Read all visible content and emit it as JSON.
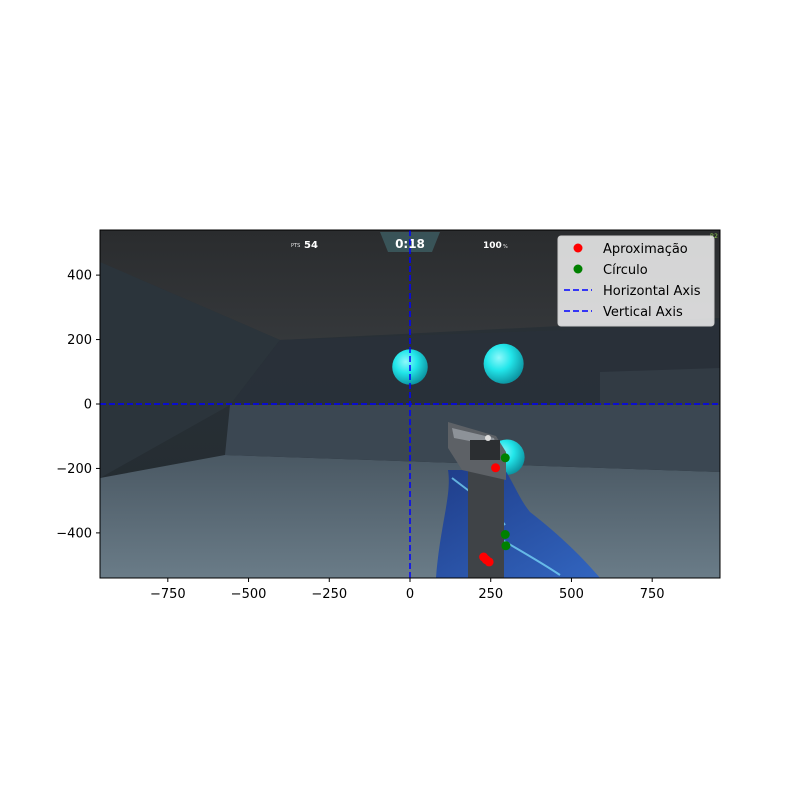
{
  "hud": {
    "score_prefix": "PTS",
    "score": "54",
    "timer": "0:18",
    "accuracy": "100",
    "accuracy_unit": "%",
    "corner_tag": "R2"
  },
  "chart_data": {
    "type": "scatter",
    "xlim": [
      -960,
      960
    ],
    "ylim": [
      -540,
      540
    ],
    "xticks": [
      -750,
      -500,
      -250,
      0,
      250,
      500,
      750
    ],
    "yticks": [
      -400,
      -200,
      0,
      200,
      400
    ],
    "xtick_labels": [
      "−750",
      "−500",
      "−250",
      "0",
      "250",
      "500",
      "750"
    ],
    "ytick_labels": [
      "−400",
      "−200",
      "0",
      "200",
      "400"
    ],
    "grid": false,
    "legend_position": "top-right",
    "series": [
      {
        "name": "Aproximação",
        "kind": "points",
        "color": "#ff0000",
        "points": [
          [
            265,
            -198
          ],
          [
            228,
            -475
          ],
          [
            236,
            -483
          ],
          [
            245,
            -490
          ]
        ]
      },
      {
        "name": "Círculo",
        "kind": "points",
        "color": "#008000",
        "points": [
          [
            295,
            -167
          ],
          [
            295,
            -405
          ],
          [
            297,
            -440
          ]
        ]
      },
      {
        "name": "Horizontal Axis",
        "kind": "hline",
        "color": "#0000ff",
        "value": 0
      },
      {
        "name": "Vertical Axis",
        "kind": "vline",
        "color": "#0000ff",
        "value": 0
      }
    ],
    "targets": [
      {
        "x": 0,
        "y": 115,
        "r": 55
      },
      {
        "x": 290,
        "y": 125,
        "r": 62
      },
      {
        "x": 300,
        "y": -165,
        "r": 55
      }
    ],
    "target_color": "#22e6ea"
  }
}
